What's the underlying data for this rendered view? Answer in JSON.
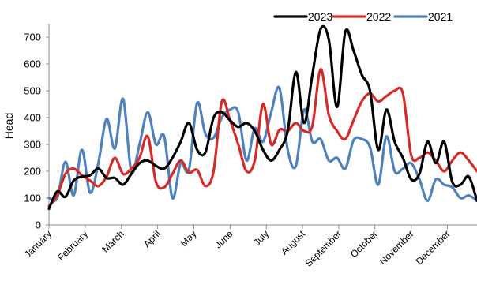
{
  "chart_data": {
    "type": "line",
    "title": "",
    "xlabel": "",
    "ylabel": "Head",
    "ylim": [
      0,
      750
    ],
    "yticks": [
      0,
      100,
      200,
      300,
      400,
      500,
      600,
      700
    ],
    "xlim": [
      1,
      53
    ],
    "grid": false,
    "legend_position": "top-right",
    "months": [
      {
        "label": "January",
        "week": 1
      },
      {
        "label": "February",
        "week": 5.4
      },
      {
        "label": "March",
        "week": 9.8
      },
      {
        "label": "April",
        "week": 14.2
      },
      {
        "label": "May",
        "week": 18.6
      },
      {
        "label": "June",
        "week": 23
      },
      {
        "label": "July",
        "week": 27.4
      },
      {
        "label": "August",
        "week": 31.8
      },
      {
        "label": "September",
        "week": 36.2
      },
      {
        "label": "October",
        "week": 40.6
      },
      {
        "label": "November",
        "week": 45
      },
      {
        "label": "December",
        "week": 49.4
      }
    ],
    "series": [
      {
        "name": "2023",
        "color": "#000000",
        "x": [
          1,
          2,
          3,
          4,
          5,
          6,
          7,
          8,
          9,
          10,
          11,
          12,
          13,
          14,
          15,
          16,
          17,
          18,
          19,
          20,
          21,
          22,
          23,
          24,
          25,
          26,
          27,
          28,
          29,
          30,
          31,
          32,
          33,
          34,
          35,
          36,
          37,
          38,
          39,
          40,
          41,
          42,
          43,
          44,
          45,
          46,
          47,
          48,
          49,
          50,
          51,
          52,
          53
        ],
        "y": [
          60,
          125,
          105,
          165,
          180,
          185,
          210,
          175,
          175,
          150,
          190,
          230,
          240,
          220,
          210,
          250,
          310,
          380,
          280,
          270,
          400,
          420,
          390,
          365,
          380,
          350,
          280,
          240,
          280,
          350,
          570,
          380,
          560,
          730,
          690,
          440,
          720,
          650,
          560,
          500,
          280,
          430,
          310,
          250,
          170,
          190,
          310,
          230,
          310,
          160,
          150,
          180,
          90
        ]
      },
      {
        "name": "2022",
        "color": "#d42b27",
        "x": [
          1,
          2,
          3,
          4,
          5,
          6,
          7,
          8,
          9,
          10,
          11,
          12,
          13,
          14,
          15,
          16,
          17,
          18,
          19,
          20,
          21,
          22,
          23,
          24,
          25,
          26,
          27,
          28,
          29,
          30,
          31,
          32,
          33,
          34,
          35,
          36,
          37,
          38,
          39,
          40,
          41,
          42,
          43,
          44,
          45,
          46,
          47,
          48,
          49,
          50,
          51,
          52,
          53
        ],
        "y": [
          70,
          110,
          190,
          210,
          185,
          165,
          145,
          180,
          250,
          190,
          210,
          250,
          330,
          160,
          140,
          190,
          240,
          195,
          205,
          145,
          200,
          460,
          390,
          300,
          200,
          240,
          450,
          300,
          355,
          350,
          380,
          350,
          370,
          580,
          410,
          350,
          320,
          390,
          460,
          490,
          460,
          480,
          500,
          490,
          260,
          250,
          270,
          240,
          200,
          240,
          270,
          240,
          200
        ]
      },
      {
        "name": "2021",
        "color": "#4f81bd",
        "x": [
          1,
          2,
          3,
          4,
          5,
          6,
          7,
          8,
          9,
          10,
          11,
          12,
          13,
          14,
          15,
          16,
          17,
          18,
          19,
          20,
          21,
          22,
          23,
          24,
          25,
          26,
          27,
          28,
          29,
          30,
          31,
          32,
          33,
          34,
          35,
          36,
          37,
          38,
          39,
          40,
          41,
          42,
          43,
          44,
          45,
          46,
          47,
          48,
          49,
          50,
          51,
          52,
          53
        ],
        "y": [
          100,
          100,
          235,
          110,
          280,
          120,
          230,
          395,
          285,
          470,
          200,
          300,
          420,
          300,
          330,
          100,
          230,
          205,
          455,
          340,
          325,
          400,
          430,
          420,
          240,
          360,
          310,
          420,
          510,
          280,
          220,
          430,
          310,
          320,
          240,
          250,
          210,
          315,
          320,
          290,
          150,
          330,
          200,
          210,
          230,
          170,
          90,
          170,
          150,
          140,
          100,
          110,
          90
        ]
      }
    ]
  }
}
